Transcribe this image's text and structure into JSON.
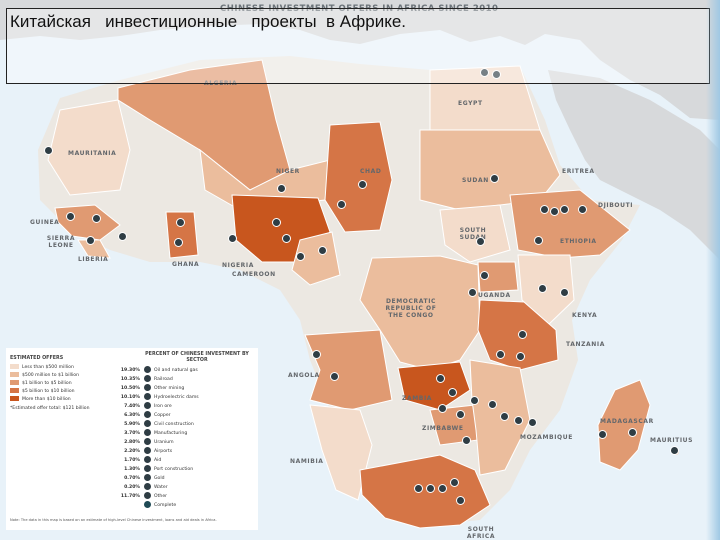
{
  "slide_title": "Китайская   инвестиционные   проекты  в Африке.",
  "map_header": "CHINESE INVESTMENT OFFERS IN AFRICA SINCE 2010",
  "countries": {
    "algeria": "ALGERIA",
    "egypt": "EGYPT",
    "mauritania": "MAURITANIA",
    "niger": "NIGER",
    "chad": "CHAD",
    "sudan": "SUDAN",
    "eritrea": "ERITREA",
    "djibouti": "DJIBOUTI",
    "guinea": "GUINEA",
    "sierra_leone": "SIERRA LEONE",
    "liberia": "LIBERIA",
    "ghana": "GHANA",
    "nigeria": "NIGERIA",
    "cameroon": "CAMEROON",
    "south_sudan": "SOUTH SUDAN",
    "ethiopia": "ETHIOPIA",
    "uganda": "UGANDA",
    "kenya": "KENYA",
    "drc": "DEMOCRATIC REPUBLIC OF THE CONGO",
    "tanzania": "TANZANIA",
    "angola": "ANGOLA",
    "zambia": "ZAMBIA",
    "zimbabwe": "ZIMBABWE",
    "namibia": "NAMIBIA",
    "mozambique": "MOZAMBIQUE",
    "madagascar": "MADAGASCAR",
    "mauritius": "MAURITIUS",
    "south_africa": "SOUTH AFRICA"
  },
  "legend": {
    "offers_title": "ESTIMATED OFFERS",
    "offers": [
      {
        "label": "Less than $500 million",
        "color": "#f3dccb"
      },
      {
        "label": "$500 million to $1 billion",
        "color": "#ebbd9d"
      },
      {
        "label": "$1 billion to $5 billion",
        "color": "#e09a72"
      },
      {
        "label": "$5 billion to $10 billion",
        "color": "#d57546"
      },
      {
        "label": "More than $10 billion",
        "color": "#c8561e"
      }
    ],
    "total": "*Estimated offer total: $121 billion",
    "sector_title": "PERCENT OF CHINESE INVESTMENT BY SECTOR",
    "sectors": [
      {
        "pct": "19.30%",
        "label": "Oil and natural gas"
      },
      {
        "pct": "10.35%",
        "label": "Railroad"
      },
      {
        "pct": "10.50%",
        "label": "Other mining"
      },
      {
        "pct": "10.10%",
        "label": "Hydroelectric dams"
      },
      {
        "pct": "7.40%",
        "label": "Iron ore"
      },
      {
        "pct": "6.30%",
        "label": "Copper"
      },
      {
        "pct": "5.90%",
        "label": "Civil construction"
      },
      {
        "pct": "3.70%",
        "label": "Manufacturing"
      },
      {
        "pct": "2.80%",
        "label": "Uranium"
      },
      {
        "pct": "2.20%",
        "label": "Airports"
      },
      {
        "pct": "1.70%",
        "label": "Aid"
      },
      {
        "pct": "1.30%",
        "label": "Port construction"
      },
      {
        "pct": "0.70%",
        "label": "Gold"
      },
      {
        "pct": "0.20%",
        "label": "Water"
      },
      {
        "pct": "11.70%",
        "label": "Other"
      },
      {
        "pct": "",
        "label": "Complete"
      }
    ],
    "note": "Note: The data in this map is based on an estimate of high-level Chinese investment, loans and aid deals in Africa."
  },
  "colors": {
    "ocean": "#e8f2f9",
    "non_africa": "#d7d9db",
    "no_data": "#ece8e2",
    "tier1": "#f3dccb",
    "tier2": "#ebbd9d",
    "tier3": "#e09a72",
    "tier4": "#d57546",
    "tier5": "#c8561e",
    "marker": "#2f3d44"
  }
}
